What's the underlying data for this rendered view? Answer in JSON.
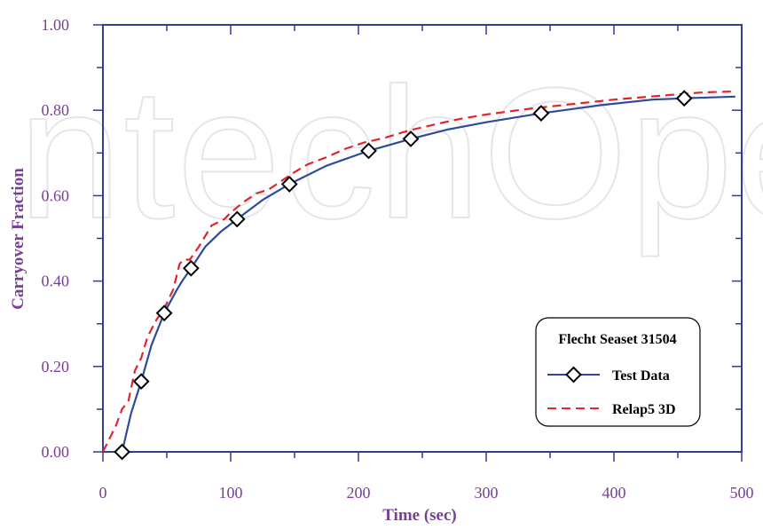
{
  "watermark": "IntechOpen",
  "colors": {
    "axis": "#2e3f94",
    "label": "#7a3f97",
    "test_data": "#2e4a9e",
    "relap": "#e4232b",
    "marker": "#000000"
  },
  "chart_data": {
    "type": "line",
    "xlabel": "Time (sec)",
    "ylabel": "Carryover Fraction",
    "xlim": [
      0,
      500
    ],
    "ylim": [
      0,
      1
    ],
    "x_ticks": [
      "0",
      "100",
      "200",
      "300",
      "400",
      "500"
    ],
    "y_ticks": [
      "0.00",
      "0.20",
      "0.40",
      "0.60",
      "0.80",
      "1.00"
    ],
    "grid": false,
    "legend": {
      "title": "Flecht Seaset 31504",
      "position": "bottom-right"
    },
    "series": [
      {
        "name": "Test Data",
        "style": "solid-line-diamond-markers",
        "x": [
          15,
          22,
          30,
          38,
          48,
          57,
          62,
          69,
          80,
          92,
          105,
          125,
          146,
          175,
          208,
          241,
          270,
          300,
          343,
          390,
          430,
          455,
          495
        ],
        "y": [
          0.0,
          0.09,
          0.165,
          0.25,
          0.325,
          0.375,
          0.4,
          0.43,
          0.48,
          0.515,
          0.545,
          0.59,
          0.627,
          0.67,
          0.705,
          0.733,
          0.755,
          0.772,
          0.793,
          0.812,
          0.825,
          0.828,
          0.832
        ],
        "markers_x": [
          15,
          30,
          48,
          69,
          105,
          146,
          208,
          241,
          343,
          455
        ],
        "markers_y": [
          0.0,
          0.165,
          0.325,
          0.43,
          0.545,
          0.627,
          0.705,
          0.733,
          0.793,
          0.828
        ]
      },
      {
        "name": "Relap5 3D",
        "style": "dashed-line",
        "x": [
          0,
          10,
          15,
          20,
          25,
          30,
          35,
          42,
          48,
          55,
          60,
          63,
          68,
          75,
          85,
          95,
          100,
          110,
          120,
          130,
          140,
          150,
          160,
          175,
          190,
          205,
          220,
          240,
          260,
          280,
          300,
          330,
          360,
          400,
          440,
          470,
          495
        ],
        "y": [
          0.0,
          0.06,
          0.1,
          0.12,
          0.19,
          0.22,
          0.27,
          0.31,
          0.335,
          0.38,
          0.44,
          0.45,
          0.45,
          0.48,
          0.53,
          0.545,
          0.56,
          0.585,
          0.605,
          0.615,
          0.635,
          0.655,
          0.673,
          0.69,
          0.71,
          0.725,
          0.735,
          0.753,
          0.767,
          0.78,
          0.79,
          0.802,
          0.812,
          0.825,
          0.835,
          0.842,
          0.844
        ]
      }
    ]
  }
}
